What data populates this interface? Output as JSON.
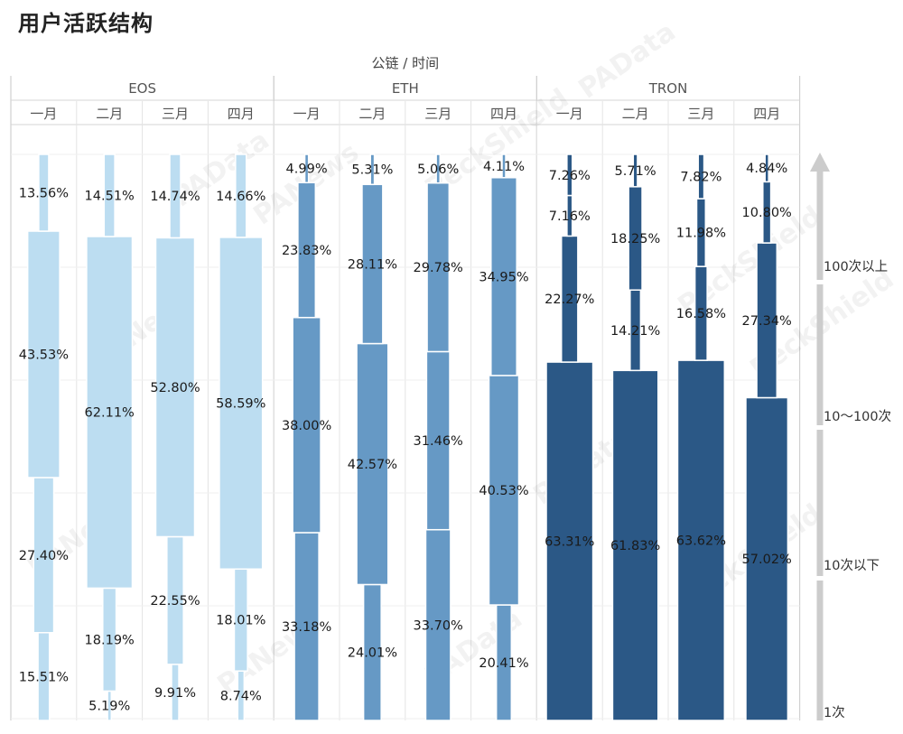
{
  "title": "用户活跃结构",
  "chart_data": {
    "type": "bar",
    "subtype": "stacked-width-mekko",
    "header_label": "公链 / 时间",
    "groups": [
      {
        "name": "EOS",
        "color": "#bcddf1"
      },
      {
        "name": "ETH",
        "color": "#6699c5"
      },
      {
        "name": "TRON",
        "color": "#2b5886"
      }
    ],
    "segments_order_bottom_to_top": [
      "1次",
      "10次以下",
      "10～100次",
      "100次以上"
    ],
    "legend": {
      "labels": [
        "100次以上",
        "10～100次",
        "10次以下",
        "1次"
      ],
      "arrow_color": "#cccccc"
    },
    "columns": [
      {
        "group": "EOS",
        "month": "一月",
        "values": [
          15.51,
          27.4,
          43.53,
          13.56
        ],
        "labels": [
          "15.51%",
          "27.40%",
          "43.53%",
          "13.56%"
        ]
      },
      {
        "group": "EOS",
        "month": "二月",
        "values": [
          5.19,
          18.19,
          62.11,
          14.51
        ],
        "labels": [
          "5.19%",
          "18.19%",
          "62.11%",
          "14.51%"
        ]
      },
      {
        "group": "EOS",
        "month": "三月",
        "values": [
          9.91,
          22.55,
          52.8,
          14.74
        ],
        "labels": [
          "9.91%",
          "22.55%",
          "52.80%",
          "14.74%"
        ]
      },
      {
        "group": "EOS",
        "month": "四月",
        "values": [
          8.74,
          18.01,
          58.59,
          14.66
        ],
        "labels": [
          "8.74%",
          "18.01%",
          "58.59%",
          "14.66%"
        ]
      },
      {
        "group": "ETH",
        "month": "一月",
        "values": [
          33.18,
          38.0,
          23.83,
          4.99
        ],
        "labels": [
          "33.18%",
          "38.00%",
          "23.83%",
          "4.99%"
        ]
      },
      {
        "group": "ETH",
        "month": "二月",
        "values": [
          24.01,
          42.57,
          28.11,
          5.31
        ],
        "labels": [
          "24.01%",
          "42.57%",
          "28.11%",
          "5.31%"
        ]
      },
      {
        "group": "ETH",
        "month": "三月",
        "values": [
          33.7,
          31.46,
          29.78,
          5.06
        ],
        "labels": [
          "33.70%",
          "31.46%",
          "29.78%",
          "5.06%"
        ]
      },
      {
        "group": "ETH",
        "month": "四月",
        "values": [
          20.41,
          40.53,
          34.95,
          4.11
        ],
        "labels": [
          "20.41%",
          "40.53%",
          "34.95%",
          "4.11%"
        ]
      },
      {
        "group": "TRON",
        "month": "一月",
        "values": [
          63.31,
          22.27,
          7.16,
          7.26
        ],
        "labels": [
          "63.31%",
          "22.27%",
          "7.16%",
          "7.26%"
        ]
      },
      {
        "group": "TRON",
        "month": "二月",
        "values": [
          61.83,
          14.21,
          18.25,
          5.71
        ],
        "labels": [
          "61.83%",
          "14.21%",
          "18.25%",
          "5.71%"
        ]
      },
      {
        "group": "TRON",
        "month": "三月",
        "values": [
          63.62,
          16.58,
          11.98,
          7.82
        ],
        "labels": [
          "63.62%",
          "16.58%",
          "11.98%",
          "7.82%"
        ]
      },
      {
        "group": "TRON",
        "month": "四月",
        "values": [
          57.02,
          27.34,
          10.8,
          4.84
        ],
        "labels": [
          "57.02%",
          "27.34%",
          "10.80%",
          "4.84%"
        ]
      }
    ],
    "watermark_texts": [
      "PeckShield",
      "PAData",
      "PANews"
    ]
  }
}
